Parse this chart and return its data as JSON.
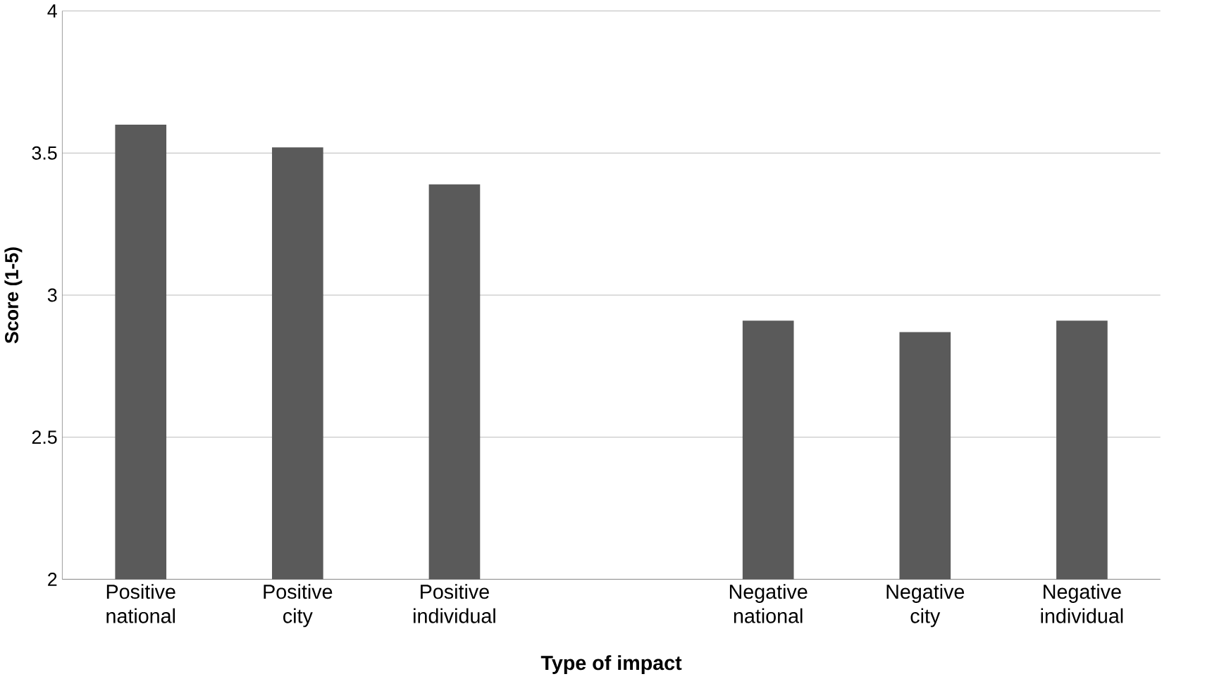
{
  "chart_data": {
    "type": "bar",
    "xlabel": "Type of impact",
    "ylabel": "Score (1-5)",
    "categories": [
      "Positive national",
      "Positive city",
      "Positive individual",
      null,
      "Negative national",
      "Negative city",
      "Negative individual"
    ],
    "values": [
      3.6,
      3.52,
      3.39,
      null,
      2.91,
      2.87,
      2.91
    ],
    "color": "#5a5a5a",
    "ylim": [
      2,
      4
    ],
    "yticks": [
      2,
      2.5,
      3,
      3.5,
      4
    ],
    "grid": "y"
  }
}
